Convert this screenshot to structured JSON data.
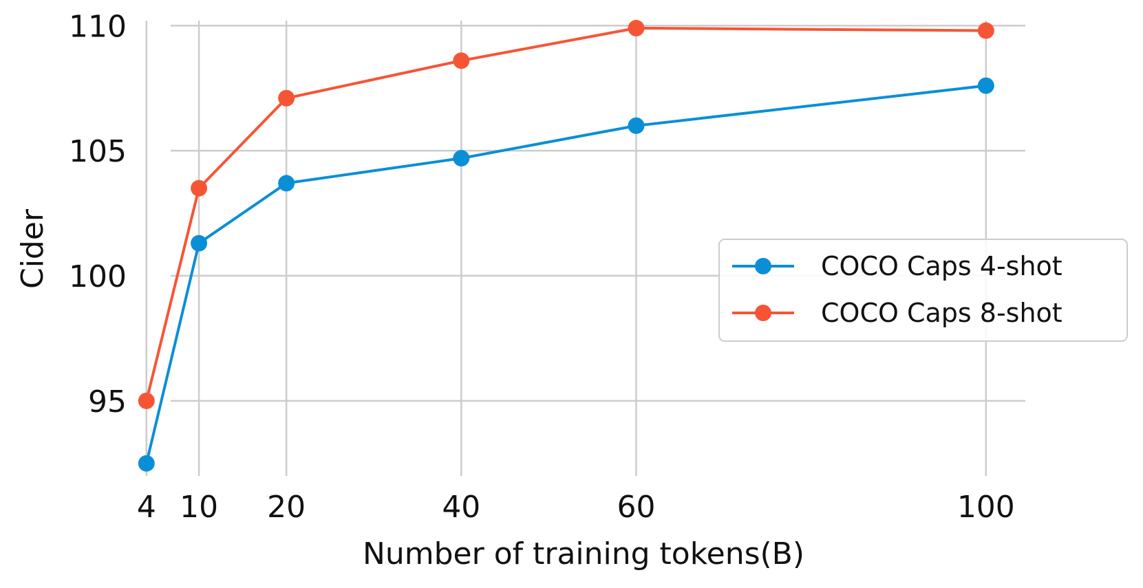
{
  "chart_data": {
    "type": "line",
    "xlabel": "Number of training tokens(B)",
    "ylabel": "Cider",
    "x": [
      4,
      10,
      20,
      40,
      60,
      100
    ],
    "xticks": [
      4,
      10,
      20,
      40,
      60,
      100
    ],
    "xtick_labels": [
      "4",
      "10",
      "20",
      "40",
      "60",
      "100"
    ],
    "yticks": [
      95,
      100,
      105,
      110
    ],
    "ytick_labels": [
      "95",
      "100",
      "105",
      "110"
    ],
    "xlim": [
      0,
      104.5
    ],
    "ylim": [
      92,
      110.2
    ],
    "grid": true,
    "legend_position": "center-right",
    "series": [
      {
        "name": "COCO Caps 4-shot",
        "color": "#0a8fd6",
        "marker": "circle",
        "values": [
          92.5,
          101.3,
          103.7,
          104.7,
          106.0,
          107.6
        ]
      },
      {
        "name": "COCO Caps 8-shot",
        "color": "#f65535",
        "marker": "circle",
        "values": [
          95.0,
          103.5,
          107.1,
          108.6,
          109.9,
          109.8
        ]
      }
    ]
  }
}
